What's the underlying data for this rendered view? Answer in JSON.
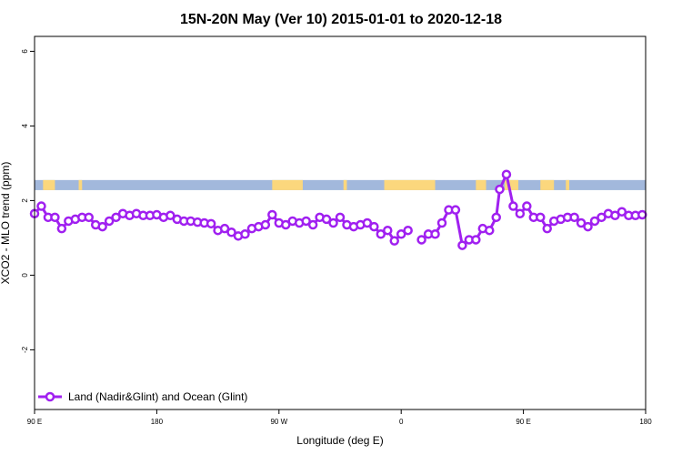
{
  "chart_data": {
    "type": "line",
    "title": "15N-20N May (Ver 10)   2015-01-01 to 2020-12-18",
    "xlabel": "Longitude (deg E)",
    "ylabel": "XCO2 - MLO trend (ppm)",
    "xlim": [
      90,
      450
    ],
    "ylim": [
      -3.6,
      6.4
    ],
    "x_ticks": [
      {
        "value": 90,
        "label": "90 E"
      },
      {
        "value": 162,
        "label": "180"
      },
      {
        "value": 234,
        "label": "90 W"
      },
      {
        "value": 306,
        "label": "0"
      },
      {
        "value": 378,
        "label": "90 E"
      },
      {
        "value": 450,
        "label": "180"
      }
    ],
    "y_ticks": [
      {
        "value": -2,
        "label": "-2"
      },
      {
        "value": 0,
        "label": "0"
      },
      {
        "value": 2,
        "label": "2"
      },
      {
        "value": 4,
        "label": "4"
      },
      {
        "value": 6,
        "label": "6"
      }
    ],
    "land_mask_band": {
      "y_range": [
        2.28,
        2.55
      ],
      "ocean_color": "#a2b8dc",
      "land_color": "#fbd77d",
      "land_segments": [
        [
          95,
          102
        ],
        [
          116,
          118
        ],
        [
          230,
          248
        ],
        [
          272,
          274
        ],
        [
          296,
          326
        ],
        [
          350,
          356
        ],
        [
          367,
          375
        ],
        [
          388,
          396
        ],
        [
          403,
          405
        ]
      ]
    },
    "series": [
      {
        "name": "Land (Nadir&Glint) and Ocean (Glint)",
        "color": "#a020f0",
        "segments": [
          [
            [
              90,
              1.65
            ],
            [
              94,
              1.85
            ],
            [
              98,
              1.55
            ],
            [
              102,
              1.55
            ],
            [
              106,
              1.25
            ],
            [
              110,
              1.45
            ],
            [
              114,
              1.5
            ],
            [
              118,
              1.55
            ],
            [
              122,
              1.55
            ],
            [
              126,
              1.35
            ],
            [
              130,
              1.3
            ],
            [
              134,
              1.45
            ],
            [
              138,
              1.55
            ],
            [
              142,
              1.65
            ],
            [
              146,
              1.6
            ],
            [
              150,
              1.65
            ],
            [
              154,
              1.6
            ],
            [
              158,
              1.6
            ],
            [
              162,
              1.62
            ],
            [
              166,
              1.55
            ],
            [
              170,
              1.6
            ],
            [
              174,
              1.5
            ],
            [
              178,
              1.45
            ],
            [
              182,
              1.45
            ],
            [
              186,
              1.42
            ],
            [
              190,
              1.4
            ],
            [
              194,
              1.38
            ],
            [
              198,
              1.2
            ],
            [
              202,
              1.25
            ],
            [
              206,
              1.15
            ],
            [
              210,
              1.05
            ],
            [
              214,
              1.1
            ],
            [
              218,
              1.25
            ],
            [
              222,
              1.3
            ],
            [
              226,
              1.35
            ],
            [
              230,
              1.62
            ],
            [
              234,
              1.4
            ],
            [
              238,
              1.35
            ],
            [
              242,
              1.45
            ],
            [
              246,
              1.4
            ],
            [
              250,
              1.45
            ],
            [
              254,
              1.35
            ],
            [
              258,
              1.55
            ],
            [
              262,
              1.5
            ],
            [
              266,
              1.4
            ],
            [
              270,
              1.55
            ],
            [
              274,
              1.35
            ],
            [
              278,
              1.3
            ],
            [
              282,
              1.35
            ],
            [
              286,
              1.4
            ],
            [
              290,
              1.3
            ],
            [
              294,
              1.1
            ],
            [
              298,
              1.2
            ],
            [
              302,
              0.92
            ],
            [
              306,
              1.1
            ],
            [
              310,
              1.2
            ]
          ],
          [
            [
              318,
              0.95
            ],
            [
              322,
              1.1
            ],
            [
              326,
              1.1
            ],
            [
              330,
              1.4
            ],
            [
              334,
              1.75
            ],
            [
              338,
              1.75
            ],
            [
              342,
              0.8
            ],
            [
              346,
              0.95
            ],
            [
              350,
              0.95
            ],
            [
              354,
              1.25
            ],
            [
              358,
              1.2
            ],
            [
              362,
              1.55
            ],
            [
              364,
              2.3
            ],
            [
              368,
              2.7
            ],
            [
              372,
              1.85
            ],
            [
              376,
              1.65
            ],
            [
              380,
              1.85
            ],
            [
              384,
              1.55
            ],
            [
              388,
              1.55
            ],
            [
              392,
              1.25
            ],
            [
              396,
              1.45
            ],
            [
              400,
              1.5
            ],
            [
              404,
              1.55
            ],
            [
              408,
              1.55
            ],
            [
              412,
              1.4
            ],
            [
              416,
              1.3
            ],
            [
              420,
              1.45
            ],
            [
              424,
              1.55
            ],
            [
              428,
              1.65
            ],
            [
              432,
              1.6
            ],
            [
              436,
              1.7
            ],
            [
              440,
              1.6
            ],
            [
              444,
              1.6
            ],
            [
              448,
              1.62
            ]
          ]
        ]
      }
    ],
    "legend_position": "bottom-left",
    "grid": false
  }
}
